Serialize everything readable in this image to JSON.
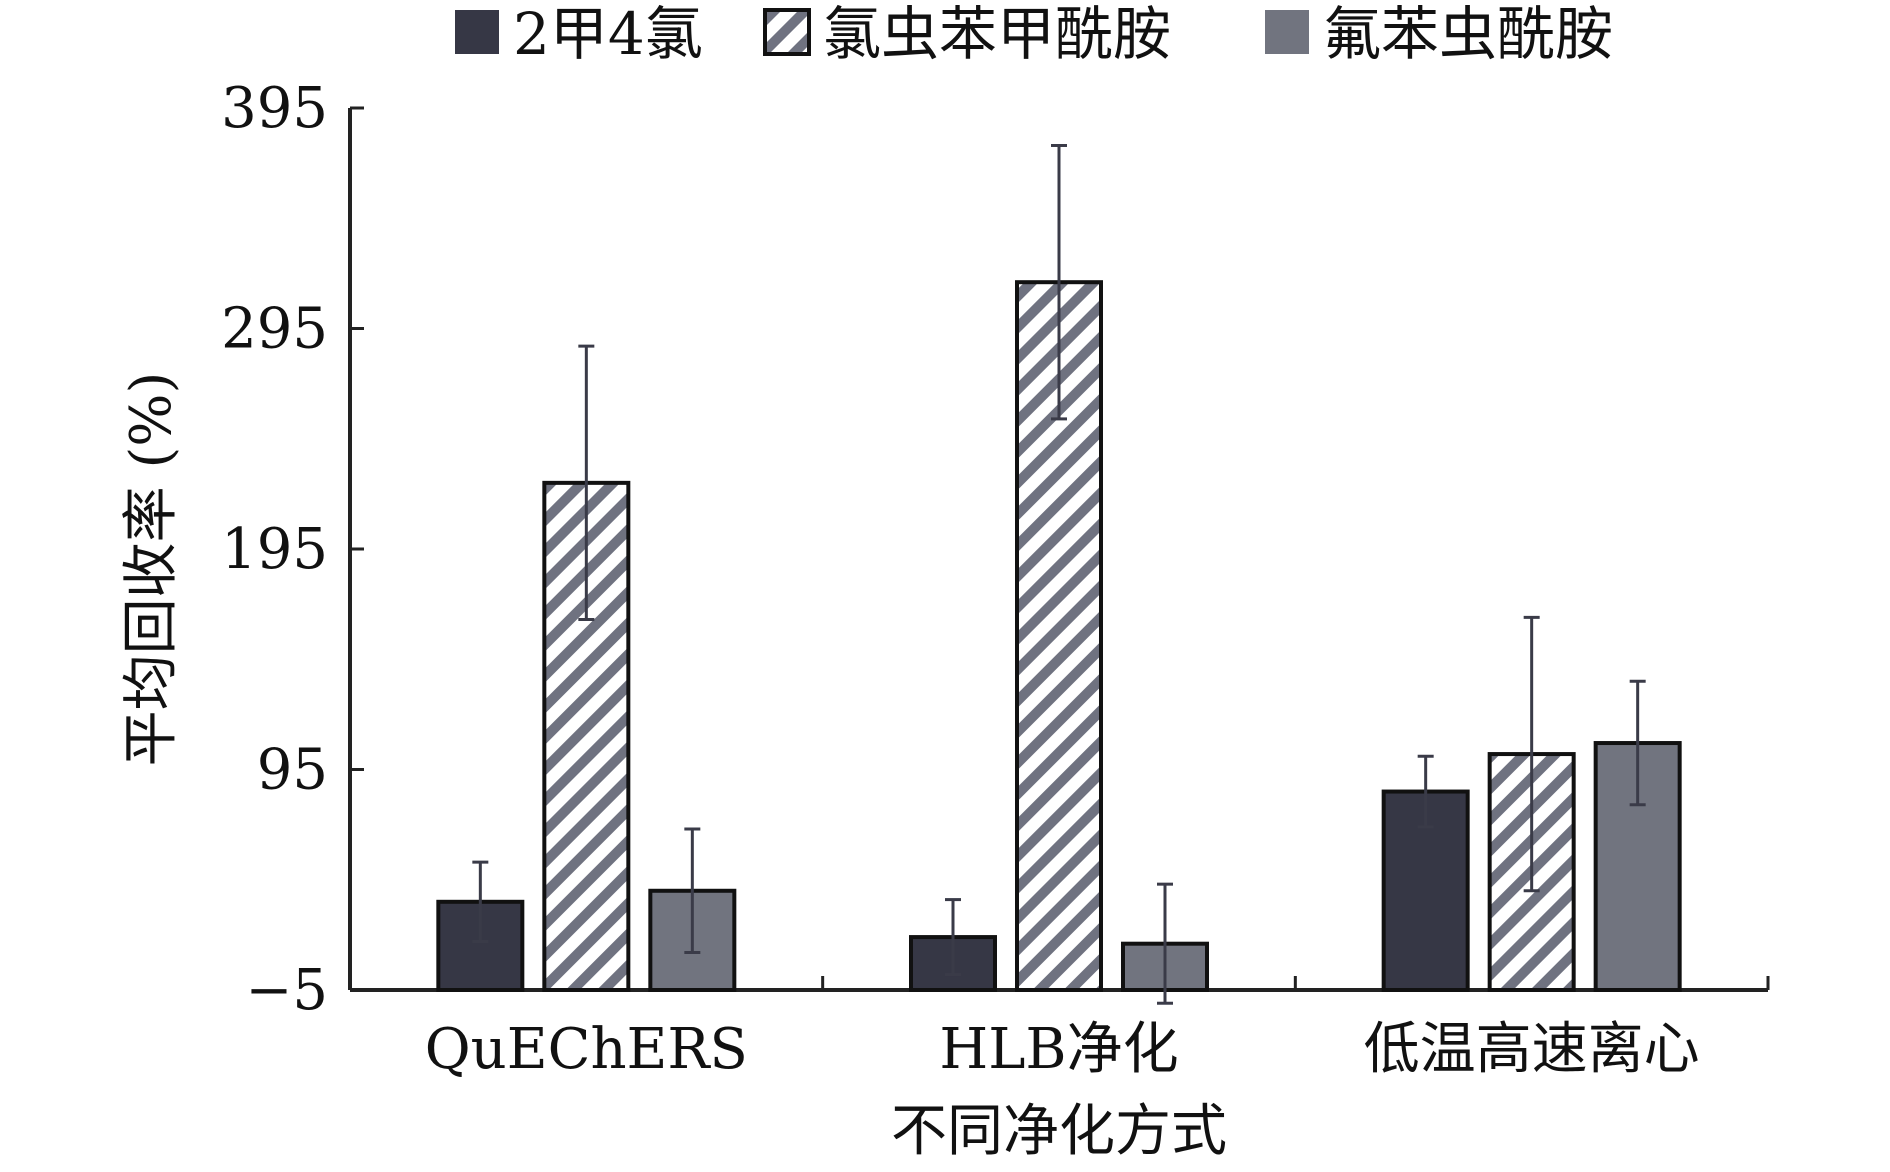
{
  "chart_data": {
    "type": "bar",
    "title": "",
    "xlabel": "不同净化方式",
    "ylabel": "平均回收率 (%)",
    "categories": [
      "QuEChERS",
      "HLB净化",
      "低温高速离心"
    ],
    "ylim": [
      -5,
      395
    ],
    "yticks": [
      -5,
      95,
      195,
      295,
      395
    ],
    "ytick_labels": [
      "−5",
      "95",
      "195",
      "295",
      "395"
    ],
    "legend_position": "top",
    "series": [
      {
        "name": "2甲4氯",
        "pattern": "solid",
        "color": "#363745",
        "values": [
          35,
          19,
          85
        ],
        "errors": [
          18,
          17,
          16
        ]
      },
      {
        "name": "氯虫苯甲酰胺",
        "pattern": "hatch",
        "color": "#6f7280",
        "values": [
          225,
          316,
          102
        ],
        "errors": [
          62,
          62,
          62
        ]
      },
      {
        "name": "氟苯虫酰胺",
        "pattern": "solid",
        "color": "#71747f",
        "values": [
          40,
          16,
          107
        ],
        "errors": [
          28,
          27,
          28
        ]
      }
    ]
  }
}
